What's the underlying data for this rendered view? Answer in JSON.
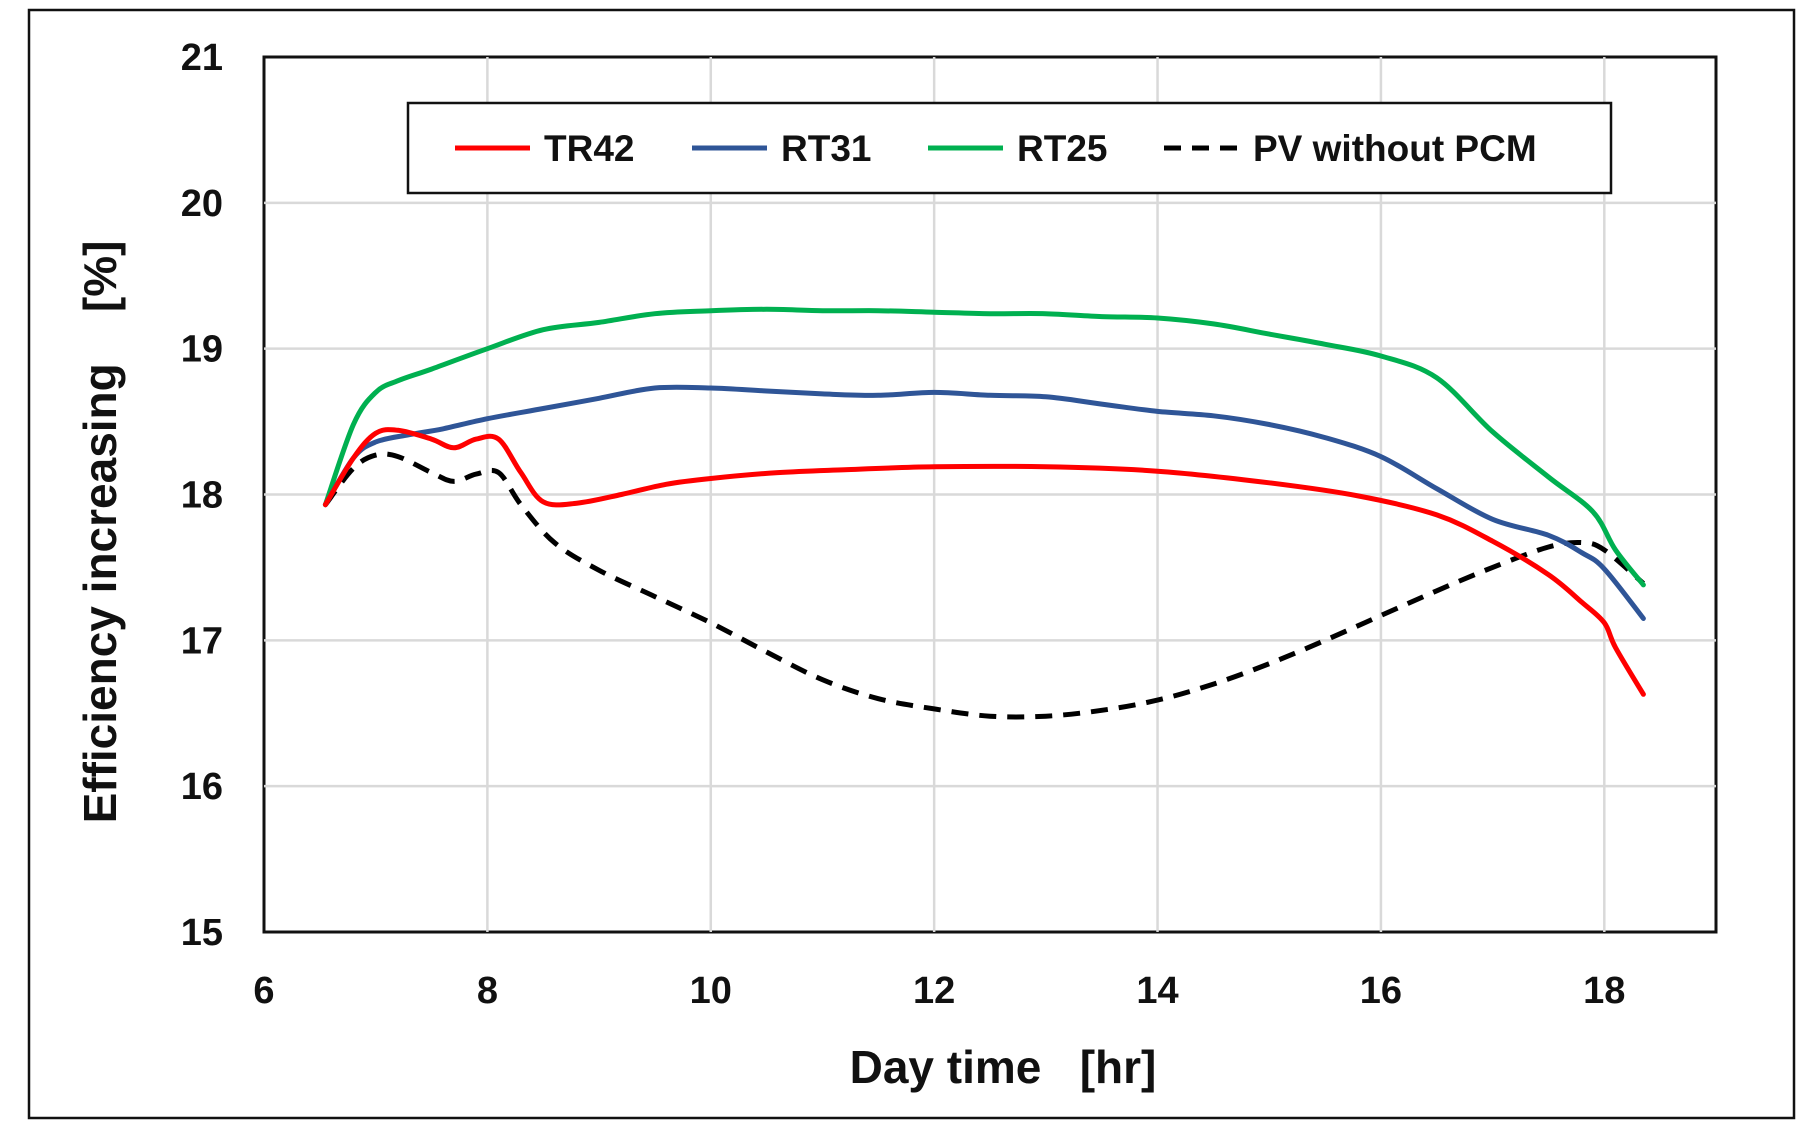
{
  "chart_data": {
    "type": "line",
    "title": "",
    "xlabel": "Day time   [hr]",
    "ylabel": "Efficiency increasing    [%]",
    "xlim": [
      6,
      19
    ],
    "ylim": [
      15,
      21
    ],
    "xticks": [
      6,
      8,
      10,
      12,
      14,
      16,
      18
    ],
    "yticks": [
      15,
      16,
      17,
      18,
      19,
      20,
      21
    ],
    "grid": true,
    "legend_position": "top",
    "series": [
      {
        "name": "TR42",
        "color": "#ff0000",
        "dash": "solid",
        "x": [
          6.55,
          6.8,
          7.0,
          7.2,
          7.5,
          7.7,
          7.9,
          8.1,
          8.3,
          8.5,
          8.8,
          9.2,
          9.6,
          10.0,
          10.6,
          11.2,
          12.0,
          13.0,
          14.0,
          15.0,
          15.8,
          16.5,
          17.0,
          17.5,
          17.8,
          18.0,
          18.1,
          18.35
        ],
        "values": [
          17.93,
          18.25,
          18.42,
          18.44,
          18.38,
          18.32,
          18.38,
          18.38,
          18.15,
          17.95,
          17.94,
          18.0,
          18.07,
          18.11,
          18.15,
          18.17,
          18.19,
          18.19,
          18.16,
          18.08,
          17.99,
          17.86,
          17.68,
          17.45,
          17.26,
          17.12,
          16.95,
          16.63
        ]
      },
      {
        "name": "RT31",
        "color": "#2f5597",
        "dash": "solid",
        "x": [
          6.55,
          6.8,
          7.0,
          7.3,
          7.6,
          8.0,
          8.5,
          9.0,
          9.5,
          10.0,
          10.5,
          11.0,
          11.5,
          12.0,
          12.5,
          13.0,
          13.5,
          14.0,
          14.5,
          15.0,
          15.5,
          16.0,
          16.5,
          17.0,
          17.5,
          17.8,
          18.0,
          18.35
        ],
        "values": [
          17.93,
          18.25,
          18.36,
          18.41,
          18.45,
          18.52,
          18.59,
          18.66,
          18.73,
          18.73,
          18.71,
          18.69,
          18.68,
          18.7,
          18.68,
          18.67,
          18.62,
          18.57,
          18.54,
          18.48,
          18.39,
          18.26,
          18.04,
          17.83,
          17.72,
          17.6,
          17.49,
          17.15
        ]
      },
      {
        "name": "RT25",
        "color": "#00b050",
        "dash": "solid",
        "x": [
          6.55,
          6.8,
          7.0,
          7.2,
          7.5,
          8.0,
          8.5,
          9.0,
          9.5,
          10.0,
          10.5,
          11.0,
          11.5,
          12.0,
          12.5,
          13.0,
          13.5,
          14.0,
          14.5,
          15.0,
          15.5,
          16.0,
          16.5,
          17.0,
          17.5,
          17.9,
          18.1,
          18.35
        ],
        "values": [
          17.93,
          18.48,
          18.7,
          18.78,
          18.86,
          19.0,
          19.13,
          19.18,
          19.24,
          19.26,
          19.27,
          19.26,
          19.26,
          19.25,
          19.24,
          19.24,
          19.22,
          19.21,
          19.17,
          19.1,
          19.03,
          18.95,
          18.8,
          18.43,
          18.12,
          17.88,
          17.62,
          17.38
        ]
      },
      {
        "name": "PV without PCM",
        "color": "#000000",
        "dash": "dashed",
        "x": [
          6.55,
          6.8,
          7.0,
          7.2,
          7.5,
          7.7,
          7.9,
          8.1,
          8.3,
          8.6,
          9.0,
          9.5,
          10.0,
          10.5,
          11.0,
          11.5,
          12.0,
          12.5,
          13.0,
          13.5,
          14.0,
          14.5,
          15.0,
          15.5,
          16.0,
          16.5,
          17.0,
          17.5,
          17.8,
          18.0,
          18.35
        ],
        "values": [
          17.93,
          18.18,
          18.27,
          18.26,
          18.15,
          18.09,
          18.14,
          18.15,
          17.93,
          17.67,
          17.48,
          17.3,
          17.12,
          16.92,
          16.73,
          16.6,
          16.53,
          16.48,
          16.48,
          16.52,
          16.59,
          16.7,
          16.84,
          17.0,
          17.17,
          17.34,
          17.5,
          17.64,
          17.67,
          17.62,
          17.39
        ]
      }
    ]
  }
}
